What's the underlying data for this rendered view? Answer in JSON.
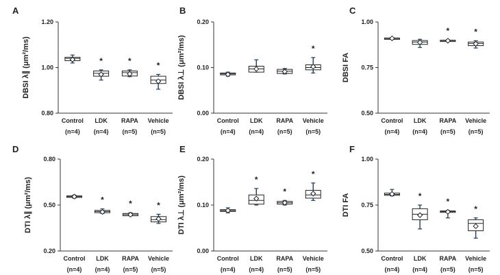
{
  "chart_data": [
    {
      "id": "A",
      "type": "box",
      "ylabel": "DBSI λ∥ (μm²/ms)",
      "ylim": [
        0.8,
        1.2
      ],
      "yticks": [
        "0.80",
        "1.00",
        "1.20"
      ],
      "ytick_values": [
        0.8,
        1.0,
        1.2
      ],
      "categories": [
        "Control",
        "LDK",
        "RAPA",
        "Vehicle"
      ],
      "ns": [
        "(n=4)",
        "(n=4)",
        "(n=5)",
        "(n=5)"
      ],
      "boxes": [
        {
          "min": 1.02,
          "q1": 1.03,
          "median": 1.04,
          "q3": 1.045,
          "max": 1.055,
          "mean": 1.035,
          "sig": ""
        },
        {
          "min": 0.945,
          "q1": 0.962,
          "median": 0.975,
          "q3": 0.985,
          "max": 0.99,
          "mean": 0.97,
          "sig": "*"
        },
        {
          "min": 0.96,
          "q1": 0.963,
          "median": 0.978,
          "q3": 0.985,
          "max": 0.99,
          "mean": 0.972,
          "sig": "*"
        },
        {
          "min": 0.905,
          "q1": 0.93,
          "median": 0.945,
          "q3": 0.962,
          "max": 0.97,
          "mean": 0.94,
          "sig": "*"
        }
      ]
    },
    {
      "id": "B",
      "type": "box",
      "ylabel": "DBSI λ⊥ (μm²/ms)",
      "ylim": [
        0.0,
        0.2
      ],
      "yticks": [
        "0.00",
        "0.10",
        "0.20"
      ],
      "ytick_values": [
        0.0,
        0.1,
        0.2
      ],
      "categories": [
        "Control",
        "LDK",
        "RAPA",
        "Vehicle"
      ],
      "ns": [
        "(n=4)",
        "(n=4)",
        "(n=5)",
        "(n=5)"
      ],
      "boxes": [
        {
          "min": 0.081,
          "q1": 0.084,
          "median": 0.086,
          "q3": 0.088,
          "max": 0.09,
          "mean": 0.085,
          "sig": ""
        },
        {
          "min": 0.09,
          "q1": 0.09,
          "median": 0.097,
          "q3": 0.103,
          "max": 0.117,
          "mean": 0.097,
          "sig": ""
        },
        {
          "min": 0.086,
          "q1": 0.087,
          "median": 0.092,
          "q3": 0.096,
          "max": 0.098,
          "mean": 0.091,
          "sig": ""
        },
        {
          "min": 0.088,
          "q1": 0.095,
          "median": 0.1,
          "q3": 0.106,
          "max": 0.122,
          "mean": 0.102,
          "sig": "*"
        }
      ]
    },
    {
      "id": "C",
      "type": "box",
      "ylabel": "DBSI FA",
      "ylim": [
        0.5,
        1.0
      ],
      "yticks": [
        "0.50",
        "0.75",
        "1.00"
      ],
      "ytick_values": [
        0.5,
        0.75,
        1.0
      ],
      "categories": [
        "Control",
        "LDK",
        "RAPA",
        "Vehicle"
      ],
      "ns": [
        "(n=4)",
        "(n=4)",
        "(n=5)",
        "(n=5)"
      ],
      "boxes": [
        {
          "min": 0.905,
          "q1": 0.908,
          "median": 0.91,
          "q3": 0.912,
          "max": 0.915,
          "mean": 0.91,
          "sig": ""
        },
        {
          "min": 0.86,
          "q1": 0.877,
          "median": 0.89,
          "q3": 0.898,
          "max": 0.905,
          "mean": 0.888,
          "sig": ""
        },
        {
          "min": 0.893,
          "q1": 0.895,
          "median": 0.898,
          "q3": 0.9,
          "max": 0.902,
          "mean": 0.897,
          "sig": "*"
        },
        {
          "min": 0.857,
          "q1": 0.87,
          "median": 0.882,
          "q3": 0.89,
          "max": 0.897,
          "mean": 0.88,
          "sig": "*"
        }
      ]
    },
    {
      "id": "D",
      "type": "box",
      "ylabel": "DTI λ∥ (μm²/ms)",
      "ylim": [
        0.2,
        0.8
      ],
      "yticks": [
        "0.20",
        "0.50",
        "0.80"
      ],
      "ytick_values": [
        0.2,
        0.5,
        0.8
      ],
      "categories": [
        "Control",
        "LDK",
        "RAPA",
        "Vehicle"
      ],
      "ns": [
        "(n=4)",
        "(n=4)",
        "(n=5)",
        "(n=5)"
      ],
      "boxes": [
        {
          "min": 0.545,
          "q1": 0.55,
          "median": 0.555,
          "q3": 0.56,
          "max": 0.565,
          "mean": 0.555,
          "sig": ""
        },
        {
          "min": 0.445,
          "q1": 0.45,
          "median": 0.458,
          "q3": 0.465,
          "max": 0.475,
          "mean": 0.455,
          "sig": "*"
        },
        {
          "min": 0.43,
          "q1": 0.43,
          "median": 0.438,
          "q3": 0.445,
          "max": 0.45,
          "mean": 0.437,
          "sig": "*"
        },
        {
          "min": 0.38,
          "q1": 0.39,
          "median": 0.405,
          "q3": 0.425,
          "max": 0.44,
          "mean": 0.41,
          "sig": "*"
        }
      ]
    },
    {
      "id": "E",
      "type": "box",
      "ylabel": "DTI λ⊥ (μm²/ms)",
      "ylim": [
        0.0,
        0.2
      ],
      "yticks": [
        "0.00",
        "0.10",
        "0.20"
      ],
      "ytick_values": [
        0.0,
        0.1,
        0.2
      ],
      "categories": [
        "Control",
        "LDK",
        "RAPA",
        "Vehicle"
      ],
      "ns": [
        "(n=4)",
        "(n=4)",
        "(n=5)",
        "(n=5)"
      ],
      "boxes": [
        {
          "min": 0.083,
          "q1": 0.086,
          "median": 0.088,
          "q3": 0.09,
          "max": 0.094,
          "mean": 0.088,
          "sig": ""
        },
        {
          "min": 0.1,
          "q1": 0.102,
          "median": 0.11,
          "q3": 0.122,
          "max": 0.136,
          "mean": 0.114,
          "sig": "*"
        },
        {
          "min": 0.1,
          "q1": 0.102,
          "median": 0.105,
          "q3": 0.108,
          "max": 0.11,
          "mean": 0.105,
          "sig": "*"
        },
        {
          "min": 0.11,
          "q1": 0.115,
          "median": 0.122,
          "q3": 0.132,
          "max": 0.148,
          "mean": 0.125,
          "sig": "*"
        }
      ]
    },
    {
      "id": "F",
      "type": "box",
      "ylabel": "DTI FA",
      "ylim": [
        0.5,
        1.0
      ],
      "yticks": [
        "0.50",
        "0.75",
        "1.00"
      ],
      "ytick_values": [
        0.5,
        0.75,
        1.0
      ],
      "categories": [
        "Control",
        "LDK",
        "RAPA",
        "Vehicle"
      ],
      "ns": [
        "(n=4)",
        "(n=4)",
        "(n=5)",
        "(n=5)"
      ],
      "boxes": [
        {
          "min": 0.8,
          "q1": 0.803,
          "median": 0.808,
          "q3": 0.815,
          "max": 0.835,
          "mean": 0.81,
          "sig": ""
        },
        {
          "min": 0.62,
          "q1": 0.67,
          "median": 0.7,
          "q3": 0.73,
          "max": 0.75,
          "mean": 0.695,
          "sig": "*"
        },
        {
          "min": 0.68,
          "q1": 0.71,
          "median": 0.715,
          "q3": 0.718,
          "max": 0.72,
          "mean": 0.713,
          "sig": "*"
        },
        {
          "min": 0.57,
          "q1": 0.61,
          "median": 0.65,
          "q3": 0.67,
          "max": 0.68,
          "mean": 0.635,
          "sig": "*"
        }
      ]
    }
  ]
}
